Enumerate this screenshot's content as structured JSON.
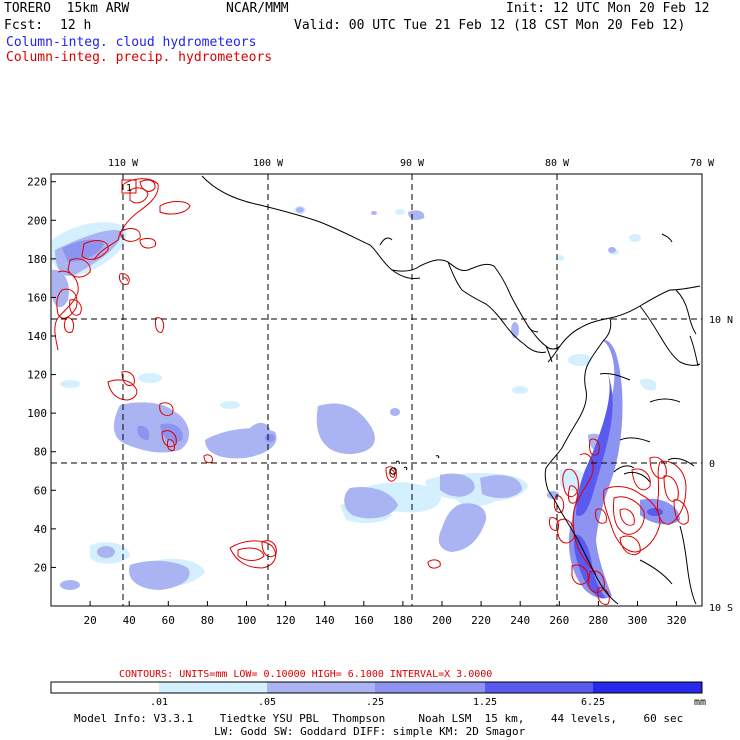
{
  "header": {
    "model": "TORERO  15km ARW",
    "org": "NCAR/MMM",
    "init": "Init: 12 UTC Mon 20 Feb 12",
    "fcst_label": "Fcst:",
    "fcst_value": "12 h",
    "valid": "Valid: 00 UTC Tue 21 Feb 12 (18 CST Mon 20 Feb 12)",
    "field_cloud": "Column-integ. cloud hydrometeors",
    "field_precip": "Column-integ. precip. hydrometeors"
  },
  "colors": {
    "cloud_text": "#2222ee",
    "precip_text": "#dd0000",
    "shade_1": "#d4f0ff",
    "shade_2": "#aab4f2",
    "shade_3": "#8c93f0",
    "shade_4": "#5a5af0",
    "shade_5": "#2828ec",
    "contour": "#dd0000",
    "coast": "#000000"
  },
  "map": {
    "lon_labels": [
      "110 W",
      "100 W",
      "90 W",
      "80 W",
      "70 W"
    ],
    "lat_labels": [
      "10 N",
      "0",
      "10 S"
    ],
    "y_ticks": [
      "220",
      "200",
      "180",
      "160",
      "140",
      "120",
      "100",
      "80",
      "60",
      "40",
      "20"
    ],
    "x_ticks": [
      "20",
      "40",
      "60",
      "80",
      "100",
      "120",
      "140",
      "160",
      "180",
      "200",
      "220",
      "240",
      "260",
      "280",
      "300",
      "320"
    ],
    "max_marker": "1"
  },
  "contours": {
    "title": "CONTOURS:  UNITS=mm  LOW= 0.10000     HIGH=  6.1000     INTERVAL=X  3.0000"
  },
  "colorbar": {
    "labels": [
      ".01",
      ".05",
      ".25",
      "1.25",
      "6.25"
    ],
    "unit": "mm"
  },
  "footer": {
    "line1": "Model Info: V3.3.1    Tiedtke YSU PBL  Thompson     Noah LSM  15 km,    44 levels,    60 sec",
    "line2": "LW: Godd SW: Goddard DIFF: simple KM: 2D Smagor"
  }
}
